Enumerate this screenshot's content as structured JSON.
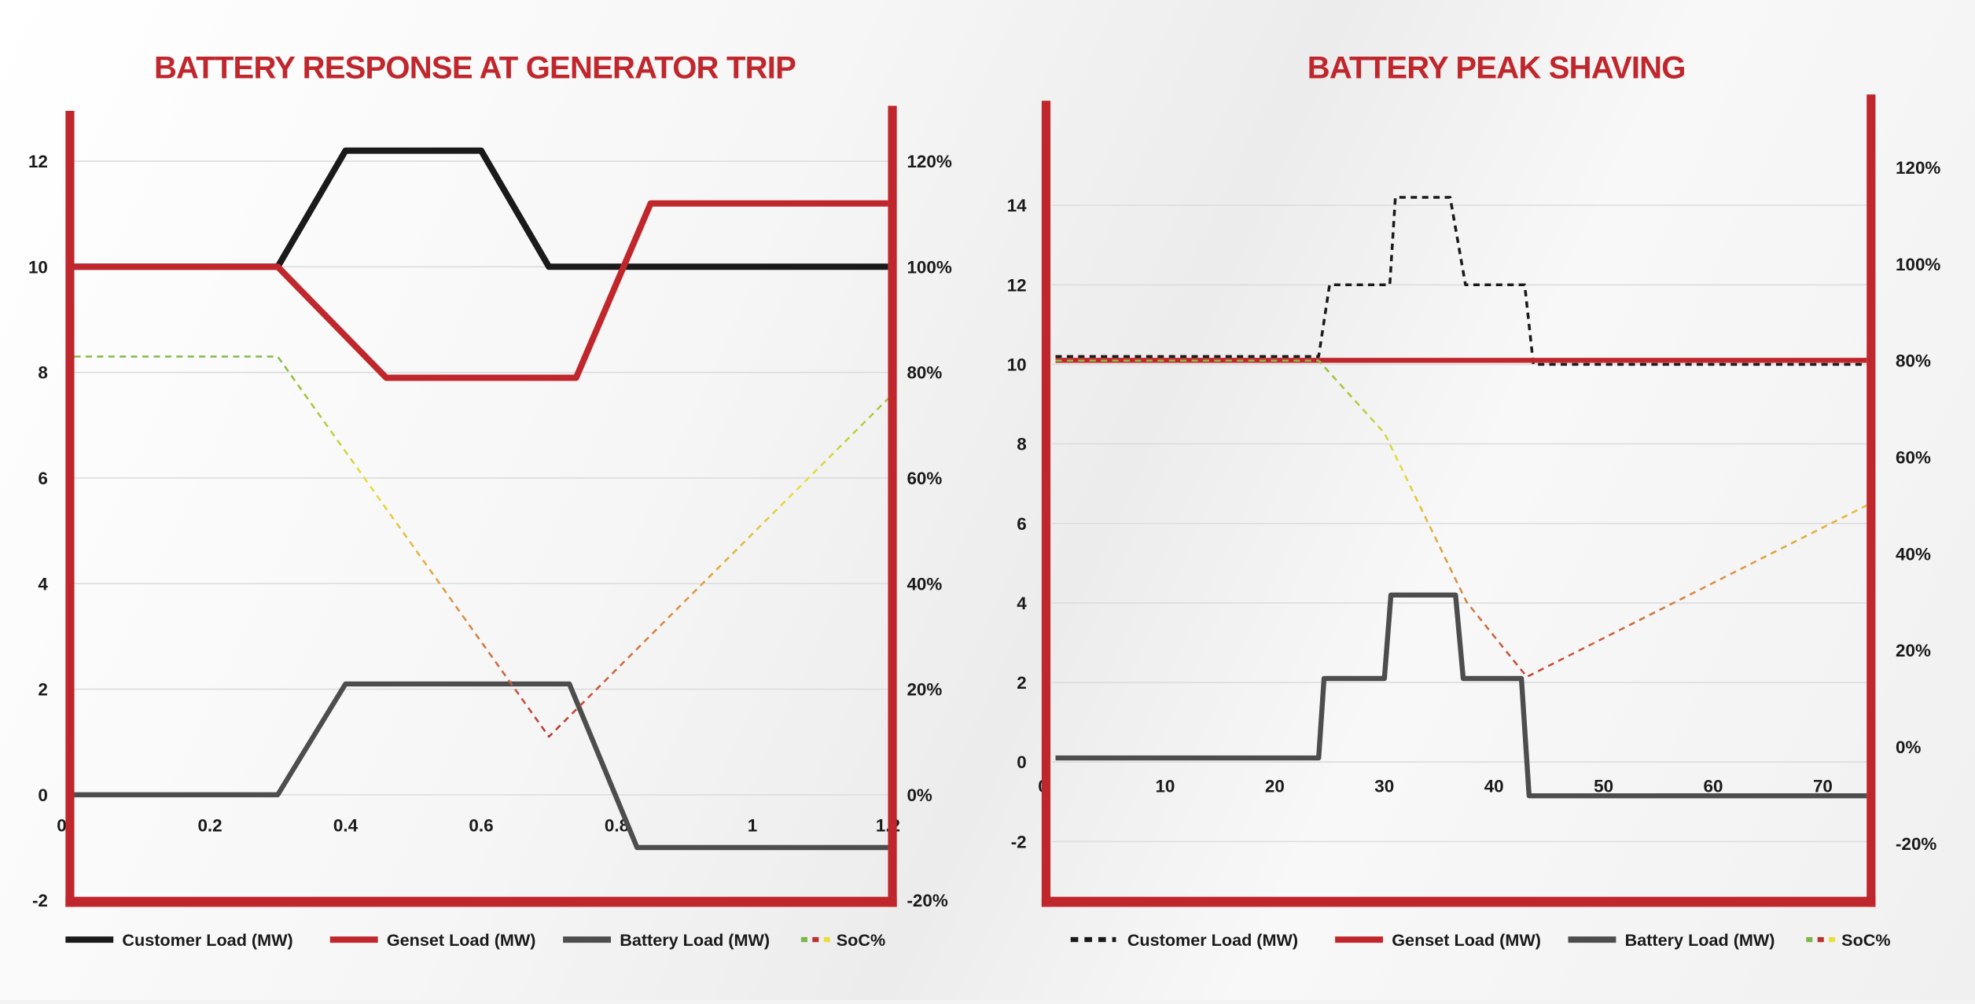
{
  "chart_data": [
    {
      "type": "line",
      "title": "BATTERY RESPONSE AT GENERATOR TRIP",
      "x_ticks": [
        "0",
        "0.2",
        "0.4",
        "0.6",
        "0.8",
        "1",
        "1.2"
      ],
      "x_tick_values": [
        0,
        0.2,
        0.4,
        0.6,
        0.8,
        1,
        1.2
      ],
      "y_ticks": [
        "-2",
        "0",
        "2",
        "4",
        "6",
        "8",
        "10",
        "12"
      ],
      "y_tick_values": [
        -2,
        0,
        2,
        4,
        6,
        8,
        10,
        12
      ],
      "y2_ticks": [
        "-20%",
        "0%",
        "20%",
        "40%",
        "60%",
        "80%",
        "100%",
        "120%"
      ],
      "y2_tick_values": [
        -20,
        0,
        20,
        40,
        60,
        80,
        100,
        120
      ],
      "xlim": [
        0,
        1.2
      ],
      "ylim": [
        -2,
        12
      ],
      "y2lim": [
        -20,
        120
      ],
      "grid": true,
      "legend_position": "bottom",
      "series": [
        {
          "name": "Customer Load (MW)",
          "style": "solid",
          "color": "#1a1a1a",
          "axis": "left",
          "points": [
            [
              0,
              10
            ],
            [
              0.3,
              10
            ],
            [
              0.4,
              12.2
            ],
            [
              0.6,
              12.2
            ],
            [
              0.7,
              10
            ],
            [
              1.2,
              10
            ]
          ]
        },
        {
          "name": "Genset Load (MW)",
          "style": "solid",
          "color": "#c0272d",
          "axis": "left",
          "points": [
            [
              0,
              10
            ],
            [
              0.3,
              10
            ],
            [
              0.46,
              7.9
            ],
            [
              0.74,
              7.9
            ],
            [
              0.85,
              11.2
            ],
            [
              1.2,
              11.2
            ]
          ]
        },
        {
          "name": "Battery Load (MW)",
          "style": "solid",
          "color": "#4d4d4d",
          "axis": "left",
          "points": [
            [
              0,
              0
            ],
            [
              0.3,
              0
            ],
            [
              0.4,
              2.1
            ],
            [
              0.73,
              2.1
            ],
            [
              0.83,
              -1
            ],
            [
              1.2,
              -1
            ]
          ]
        },
        {
          "name": "SoC%",
          "style": "dashed-gradient",
          "color": "#e8d83a",
          "axis": "right",
          "points": [
            [
              0,
              83
            ],
            [
              0.3,
              83
            ],
            [
              0.7,
              11
            ],
            [
              1.2,
              75
            ]
          ]
        }
      ]
    },
    {
      "type": "line",
      "title": "BATTERY PEAK SHAVING",
      "x_ticks": [
        "0",
        "10",
        "20",
        "30",
        "40",
        "50",
        "60",
        "70"
      ],
      "x_tick_values": [
        0,
        10,
        20,
        30,
        40,
        50,
        60,
        70
      ],
      "y_ticks": [
        "-2",
        "0",
        "2",
        "4",
        "6",
        "8",
        "10",
        "12",
        "14"
      ],
      "y_tick_values": [
        -2,
        0,
        2,
        4,
        6,
        8,
        10,
        12,
        14
      ],
      "y2_ticks": [
        "-20%",
        "0%",
        "20%",
        "40%",
        "60%",
        "80%",
        "100%",
        "120%"
      ],
      "y2_tick_values": [
        -20,
        0,
        20,
        40,
        60,
        80,
        100,
        120
      ],
      "xlim": [
        0,
        74
      ],
      "ylim": [
        -2,
        14
      ],
      "y2lim": [
        -20,
        120
      ],
      "grid": true,
      "legend_position": "bottom",
      "series": [
        {
          "name": "Customer Load (MW)",
          "style": "dotted",
          "color": "#1a1a1a",
          "axis": "left",
          "points": [
            [
              0,
              10.2
            ],
            [
              24,
              10.2
            ],
            [
              25,
              12
            ],
            [
              30.5,
              12
            ],
            [
              31,
              14.2
            ],
            [
              36,
              14.2
            ],
            [
              37.4,
              12
            ],
            [
              42.8,
              12
            ],
            [
              43.6,
              10
            ],
            [
              74,
              10
            ]
          ]
        },
        {
          "name": "Genset Load (MW)",
          "style": "solid",
          "color": "#c0272d",
          "axis": "left",
          "points": [
            [
              0,
              10.1
            ],
            [
              74,
              10.1
            ]
          ]
        },
        {
          "name": "Battery Load (MW)",
          "style": "solid",
          "color": "#4d4d4d",
          "axis": "left",
          "points": [
            [
              0,
              0.1
            ],
            [
              24,
              0.1
            ],
            [
              24.5,
              2.1
            ],
            [
              30,
              2.1
            ],
            [
              30.6,
              4.2
            ],
            [
              36.5,
              4.2
            ],
            [
              37.2,
              2.1
            ],
            [
              42.5,
              2.1
            ],
            [
              43.2,
              -0.85
            ],
            [
              74,
              -0.85
            ]
          ]
        },
        {
          "name": "SoC%",
          "style": "dashed-gradient",
          "color": "#e8d83a",
          "axis": "right",
          "points": [
            [
              0,
              80
            ],
            [
              24,
              80
            ],
            [
              30,
              65
            ],
            [
              37.5,
              30
            ],
            [
              43,
              14.5
            ],
            [
              74,
              50
            ]
          ]
        }
      ]
    }
  ]
}
